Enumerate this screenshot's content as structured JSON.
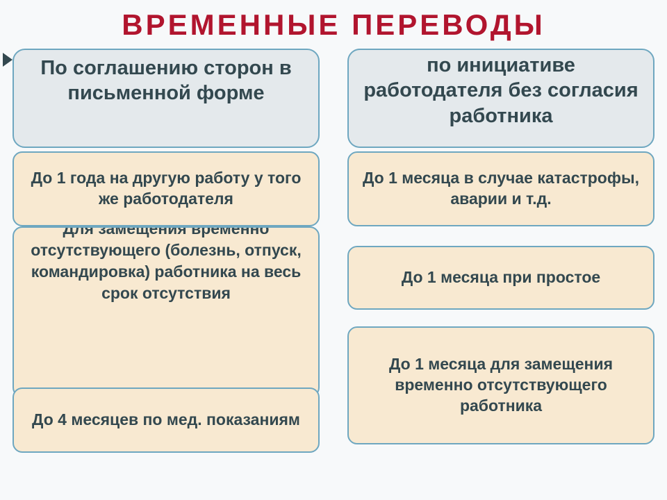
{
  "colors": {
    "title": "#b1152e",
    "border": "#6ea7c0",
    "card_bg": "#f8e9d1",
    "text": "#33484f",
    "header_bg": "#e4e9ec",
    "bullet": "#33484f",
    "bg_accent": "#d8e7ee"
  },
  "title": "ВРЕМЕННЫЕ ПЕРЕВОДЫ",
  "left": {
    "header": "По соглашению сторон в письменной форме",
    "card1": "До 1 года на другую работу у того же работодателя",
    "card2": "Для замещения временно отсутствующего (болезнь, отпуск, командировка) работника на весь срок отсутствия",
    "card3": "До 4 месяцев по мед. показаниям"
  },
  "right": {
    "header": "по инициативе работодателя без согласия работника",
    "card1": "До 1 месяца в случае катастрофы, аварии и т.д.",
    "card2": "До 1 месяца при простое",
    "card3": "До 1 месяца для замещения временно отсутствующего работника"
  }
}
